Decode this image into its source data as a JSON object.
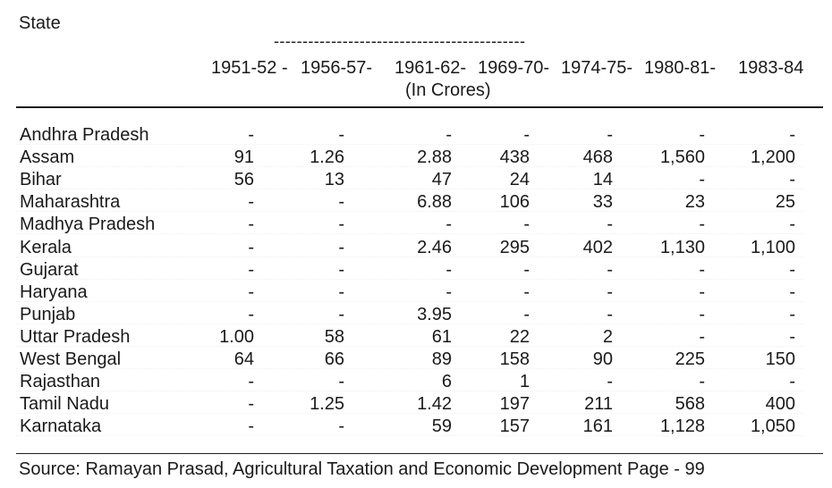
{
  "header": {
    "state_label": "State",
    "dash_line": "--------------------------------------------",
    "year_labels": [
      "1951-52 -",
      "1956-57-",
      "1961-62-",
      "1969-70-",
      "1974-75-",
      "1980-81-",
      "1983-84"
    ],
    "unit_note": "(In Crores)"
  },
  "rows": [
    {
      "state": "Andhra Pradesh",
      "values": [
        "-",
        "-",
        "-",
        "-",
        "-",
        "-",
        "-"
      ]
    },
    {
      "state": "Assam",
      "values": [
        "91",
        "1.26",
        "2.88",
        "438",
        "468",
        "1,560",
        "1,200"
      ]
    },
    {
      "state": "Bihar",
      "values": [
        "56",
        "13",
        "47",
        "24",
        "14",
        "-",
        "-"
      ]
    },
    {
      "state": "Maharashtra",
      "values": [
        "-",
        "-",
        "6.88",
        "106",
        "33",
        "23",
        "25"
      ]
    },
    {
      "state": "Madhya Pradesh",
      "values": [
        "-",
        "-",
        "-",
        "-",
        "-",
        "-",
        "-"
      ]
    },
    {
      "state": "Kerala",
      "values": [
        "-",
        "-",
        "2.46",
        "295",
        "402",
        "1,130",
        "1,100"
      ]
    },
    {
      "state": "Gujarat",
      "values": [
        "-",
        "-",
        "-",
        "-",
        "-",
        "-",
        "-"
      ]
    },
    {
      "state": "Haryana",
      "values": [
        "-",
        "-",
        "-",
        "-",
        "-",
        "-",
        "-"
      ]
    },
    {
      "state": "Punjab",
      "values": [
        "-",
        "-",
        "3.95",
        "-",
        "-",
        "-",
        "-"
      ]
    },
    {
      "state": "Uttar Pradesh",
      "values": [
        "1.00",
        "58",
        "61",
        "22",
        "2",
        "-",
        "-"
      ]
    },
    {
      "state": "West Bengal",
      "values": [
        "64",
        "66",
        "89",
        "158",
        "90",
        "225",
        "150"
      ]
    },
    {
      "state": "Rajasthan",
      "values": [
        "-",
        "-",
        "6",
        "1",
        "-",
        "-",
        "-"
      ]
    },
    {
      "state": "Tamil Nadu",
      "values": [
        "-",
        "1.25",
        "1.42",
        "197",
        "211",
        "568",
        "400"
      ]
    },
    {
      "state": "Karnataka",
      "values": [
        "-",
        "-",
        "59",
        "157",
        "161",
        "1,128",
        "1,050"
      ]
    }
  ],
  "source": "Source: Ramayan Prasad, Agricultural Taxation and Economic Development Page - 99"
}
